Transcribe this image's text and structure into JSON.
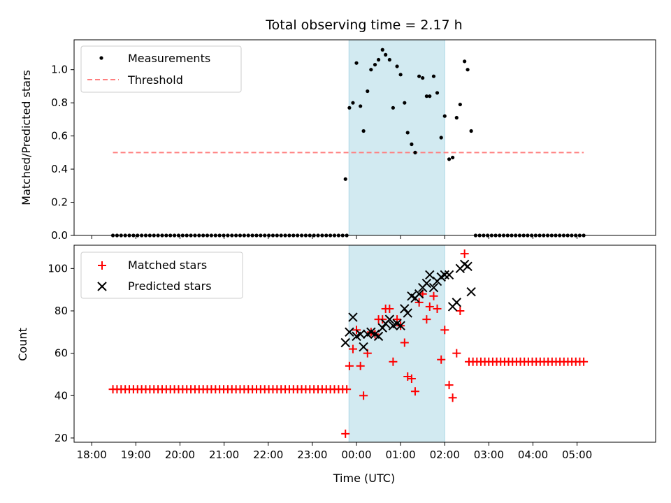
{
  "title": "Total observing time = 2.17 h",
  "colors": {
    "measure": "#000000",
    "threshold": "#ff7f7f",
    "matched": "#ff0000",
    "predicted": "#000000",
    "span": "#add8e6"
  },
  "xaxis": {
    "label": "Time (UTC)",
    "ticks": [
      {
        "v": -6.0,
        "label": "18:00"
      },
      {
        "v": -5.0,
        "label": "19:00"
      },
      {
        "v": -4.0,
        "label": "20:00"
      },
      {
        "v": -3.0,
        "label": "21:00"
      },
      {
        "v": -2.0,
        "label": "22:00"
      },
      {
        "v": -1.0,
        "label": "23:00"
      },
      {
        "v": 0.0,
        "label": "00:00"
      },
      {
        "v": 1.0,
        "label": "01:00"
      },
      {
        "v": 2.0,
        "label": "02:00"
      },
      {
        "v": 3.0,
        "label": "03:00"
      },
      {
        "v": 4.0,
        "label": "04:00"
      },
      {
        "v": 5.0,
        "label": "05:00"
      }
    ]
  },
  "chart_data": [
    {
      "type": "scatter",
      "panel": "top",
      "ylabel": "Matched/Predicted stars",
      "ylim": [
        0,
        1.18
      ],
      "yticks": [
        {
          "v": 0.0,
          "label": "0.0"
        },
        {
          "v": 0.2,
          "label": "0.2"
        },
        {
          "v": 0.4,
          "label": "0.4"
        },
        {
          "v": 0.6,
          "label": "0.6"
        },
        {
          "v": 0.8,
          "label": "0.8"
        },
        {
          "v": 1.0,
          "label": "1.0"
        }
      ],
      "legend": {
        "position": "upper-left",
        "entries": [
          "Measurements",
          "Threshold"
        ]
      },
      "highlight_span": {
        "x0": -0.17,
        "x1": 2.0
      },
      "threshold": {
        "name": "Threshold",
        "value": 0.5,
        "x0": -5.52,
        "x1": 5.15
      },
      "measurements_constant": {
        "value": 0.0,
        "x0": -5.52,
        "x1": -0.22,
        "n": 58
      },
      "measurements_constant2": {
        "value": 0.0,
        "x0": 2.7,
        "x1": 5.15,
        "n": 28
      },
      "measurements": {
        "name": "Measurements",
        "x": [
          -0.25,
          -0.16,
          -0.08,
          0.0,
          0.09,
          0.16,
          0.25,
          0.33,
          0.42,
          0.5,
          0.59,
          0.66,
          0.75,
          0.83,
          0.92,
          1.0,
          1.09,
          1.16,
          1.25,
          1.33,
          1.42,
          1.5,
          1.59,
          1.66,
          1.75,
          1.83,
          1.92,
          2.0,
          2.1,
          2.18,
          2.27,
          2.35,
          2.45,
          2.52,
          2.6
        ],
        "y": [
          0.34,
          0.77,
          0.8,
          1.04,
          0.78,
          0.63,
          0.87,
          1.0,
          1.03,
          1.06,
          1.12,
          1.09,
          1.06,
          0.77,
          1.02,
          0.97,
          0.8,
          0.62,
          0.55,
          0.5,
          0.96,
          0.95,
          0.84,
          0.84,
          0.96,
          0.86,
          0.59,
          0.72,
          0.46,
          0.47,
          0.71,
          0.79,
          1.05,
          1.0,
          0.63
        ]
      }
    },
    {
      "type": "scatter",
      "panel": "bottom",
      "ylabel": "Count",
      "ylim": [
        18,
        111
      ],
      "yticks": [
        {
          "v": 20,
          "label": "20"
        },
        {
          "v": 40,
          "label": "40"
        },
        {
          "v": 60,
          "label": "60"
        },
        {
          "v": 80,
          "label": "80"
        },
        {
          "v": 100,
          "label": "100"
        }
      ],
      "legend": {
        "position": "upper-left",
        "entries": [
          "Matched stars",
          "Predicted stars"
        ]
      },
      "highlight_span": {
        "x0": -0.17,
        "x1": 2.0
      },
      "matched_constant": {
        "value": 43,
        "x0": -5.52,
        "x1": -0.22,
        "n": 58
      },
      "matched_constant2": {
        "value": 56,
        "x0": 2.55,
        "x1": 5.15,
        "n": 30
      },
      "matched": {
        "name": "Matched stars",
        "x": [
          -0.25,
          -0.16,
          -0.08,
          0.0,
          0.09,
          0.16,
          0.25,
          0.33,
          0.42,
          0.5,
          0.59,
          0.66,
          0.75,
          0.83,
          0.92,
          1.0,
          1.09,
          1.16,
          1.25,
          1.33,
          1.42,
          1.5,
          1.59,
          1.66,
          1.75,
          1.83,
          1.92,
          2.0,
          2.1,
          2.18,
          2.27,
          2.35,
          2.45
        ],
        "y": [
          22,
          54,
          62,
          71,
          54,
          40,
          60,
          70,
          69,
          76,
          76,
          81,
          81,
          56,
          76,
          73,
          65,
          49,
          48,
          42,
          84,
          88,
          76,
          82,
          87,
          81,
          57,
          71,
          45,
          39,
          60,
          80,
          107
        ]
      },
      "predicted": {
        "name": "Predicted stars",
        "x": [
          -0.25,
          -0.16,
          -0.08,
          0.0,
          0.09,
          0.16,
          0.25,
          0.33,
          0.42,
          0.5,
          0.59,
          0.66,
          0.75,
          0.83,
          0.92,
          1.0,
          1.09,
          1.16,
          1.25,
          1.33,
          1.42,
          1.5,
          1.59,
          1.66,
          1.75,
          1.83,
          1.92,
          2.0,
          2.1,
          2.18,
          2.27,
          2.35,
          2.45,
          2.52,
          2.6
        ],
        "y": [
          65,
          70,
          77,
          68,
          69,
          63,
          69,
          70,
          69,
          68,
          72,
          74,
          76,
          73,
          74,
          73,
          81,
          79,
          87,
          86,
          88,
          91,
          93,
          97,
          91,
          94,
          96,
          97,
          97,
          82,
          84,
          100,
          102,
          101,
          89
        ]
      }
    }
  ]
}
